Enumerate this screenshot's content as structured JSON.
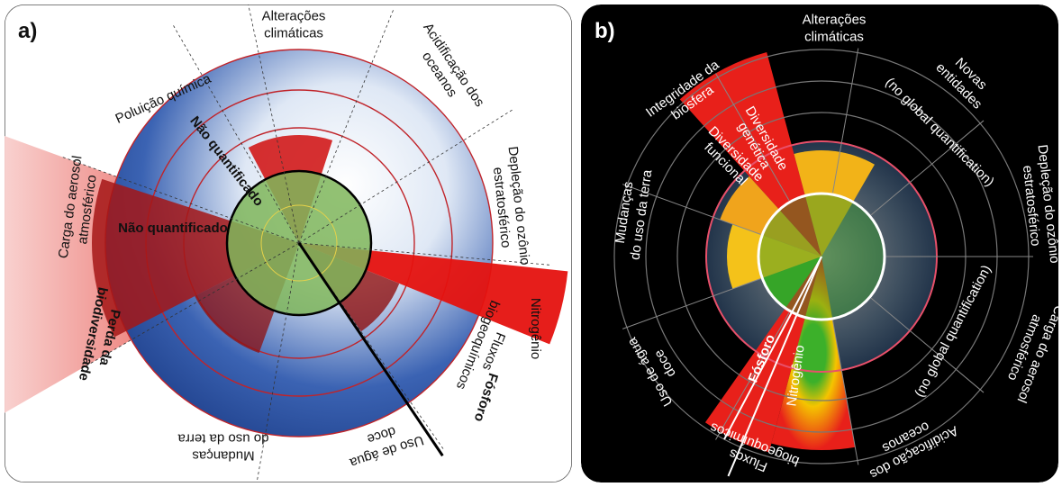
{
  "panel_a": {
    "label": "a)",
    "sectors": [
      {
        "lines": [
          "Alterações",
          "climáticas"
        ]
      },
      {
        "lines": [
          "Acidificação dos",
          "oceanos"
        ]
      },
      {
        "lines": [
          "Depleção do ozônio",
          "estratosférico"
        ]
      },
      {
        "lines": [
          "Nitrogênio"
        ]
      },
      {
        "lines": [
          "Fluxos",
          "biogeoquímicos"
        ]
      },
      {
        "lines": [
          "Fósforo"
        ]
      },
      {
        "lines": [
          "Uso de água",
          "doce"
        ]
      },
      {
        "lines": [
          "Mudanças",
          "do uso da terra"
        ]
      },
      {
        "lines": [
          "Perda da",
          "biodiversidade"
        ]
      },
      {
        "lines": [
          "Carga do aerosol",
          "atmosférico"
        ]
      },
      {
        "lines": [
          "Poluição química"
        ]
      }
    ],
    "notes": [
      "Não quantificado",
      "Não quantificado"
    ]
  },
  "panel_b": {
    "label": "b)",
    "sectors": [
      {
        "lines": [
          "Alterações",
          "climáticas"
        ]
      },
      {
        "lines": [
          "Novas",
          "entidades"
        ]
      },
      {
        "lines": [
          "Depleção do ozônio",
          "estratosférico"
        ]
      },
      {
        "lines": [
          "Carga do aerosol",
          "atmosférico"
        ]
      },
      {
        "lines": [
          "Acidificação dos",
          "oceanos"
        ]
      },
      {
        "lines": [
          "Fluxos",
          "biogeoquímicos"
        ]
      },
      {
        "lines": [
          "Uso de água",
          "doce"
        ]
      },
      {
        "lines": [
          "Mudanças",
          "do uso da terra"
        ]
      },
      {
        "lines": [
          "Integridade da",
          "biosfera"
        ]
      }
    ],
    "sub_labels": [
      {
        "lines": [
          "Diversidade",
          "genética"
        ]
      },
      {
        "lines": [
          "Diversidade",
          "funcional"
        ]
      },
      {
        "lines": [
          "Fósforo"
        ]
      },
      {
        "lines": [
          "Nitrogênio"
        ]
      }
    ],
    "notes": [
      "(no global quantification)",
      "(no global quantification)"
    ]
  }
}
